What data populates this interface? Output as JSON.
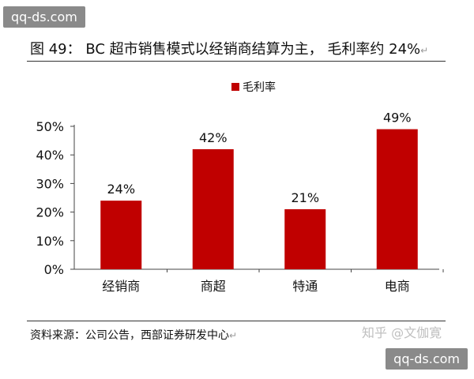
{
  "watermark_top": "qq-ds.com",
  "watermark_bottom": "qq-ds.com",
  "figure": {
    "title": "图 49：  BC 超市销售模式以经销商结算为主，  毛利率约 24%",
    "source": "资料来源：公司公告，西部证券研发中心",
    "attribution": "知乎 @文伽寛"
  },
  "chart_data": {
    "type": "bar",
    "categories": [
      "经销商",
      "商超",
      "特通",
      "电商"
    ],
    "series": [
      {
        "name": "毛利率",
        "values": [
          24,
          42,
          21,
          49
        ],
        "labels": [
          "24%",
          "42%",
          "21%",
          "49%"
        ]
      }
    ],
    "yticks": [
      "0%",
      "10%",
      "20%",
      "30%",
      "40%",
      "50%"
    ],
    "ylim": [
      0,
      50
    ],
    "legend": "top-center",
    "grid": false,
    "colors": {
      "bar": "#c00000",
      "axis": "#444444"
    }
  }
}
